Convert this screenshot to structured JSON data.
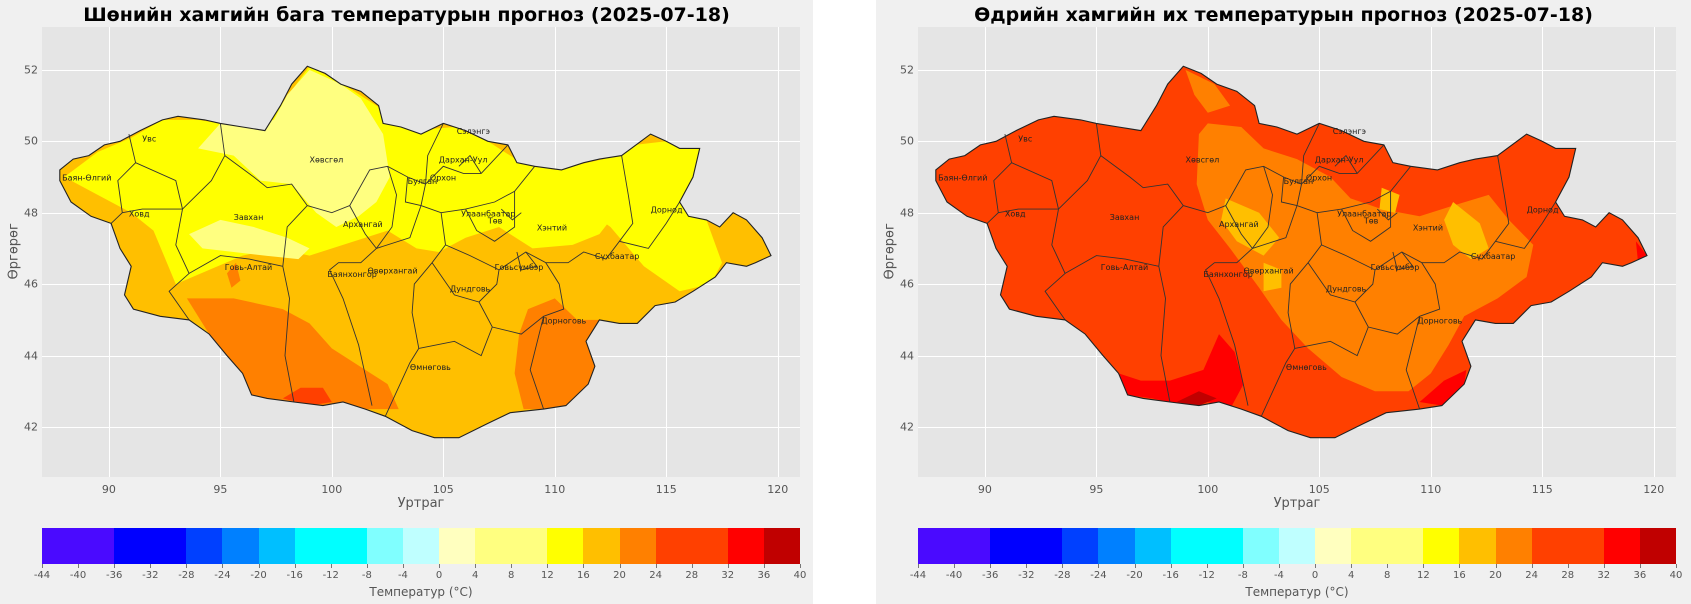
{
  "maps": [
    {
      "title": "Шөнийн хамгийн бага температурын прогноз (2025-07-18)",
      "xlabel": "Уртраг",
      "ylabel": "Өргөрөг",
      "theme": "night"
    },
    {
      "title": "Өдрийн хамгийн их температурын прогноз (2025-07-18)",
      "xlabel": "Уртраг",
      "ylabel": "Өргөрөг",
      "theme": "day"
    }
  ],
  "x_ticks": [
    "90",
    "95",
    "100",
    "105",
    "110",
    "115",
    "120"
  ],
  "y_ticks": [
    "52",
    "50",
    "48",
    "46",
    "44",
    "42"
  ],
  "colorbar": {
    "label": "Температур (°C)",
    "ticks": [
      "-44",
      "-40",
      "-36",
      "-32",
      "-28",
      "-24",
      "-20",
      "-16",
      "-12",
      "-8",
      "-4",
      "0",
      "4",
      "8",
      "12",
      "16",
      "20",
      "24",
      "28",
      "32",
      "36",
      "40"
    ],
    "colors": [
      "#4a0aff",
      "#4a0aff",
      "#0000ff",
      "#0000ff",
      "#0040ff",
      "#0080ff",
      "#00bfff",
      "#00ffff",
      "#00ffff",
      "#80ffff",
      "#bfffff",
      "#ffffbf",
      "#ffff80",
      "#ffff00",
      "#ffbf00",
      "#ff8000",
      "#ff4000",
      "#ff4000",
      "#ff0000",
      "#c00000",
      "#c00000"
    ],
    "boundaries": [
      -44,
      -36,
      -28,
      -24,
      -20,
      -16,
      -8,
      -4,
      0,
      4,
      12,
      16,
      20,
      24,
      32,
      36,
      40
    ]
  },
  "regions": [
    "Увс",
    "Баян-Өлгий",
    "Ховд",
    "Завхан",
    "Хөвсгөл",
    "Сэлэнгэ",
    "Дархан-Уул",
    "Орхон",
    "Булган",
    "Архангай",
    "Улаанбаатар",
    "Төв",
    "Хэнтий",
    "Дорнод",
    "Сүхбаатар",
    "Говь-Алтай",
    "Баянхонгор",
    "Өвөрхангай",
    "Дундговь",
    "Говьсүмбэр",
    "Дорноговь",
    "Өмнөговь"
  ]
}
